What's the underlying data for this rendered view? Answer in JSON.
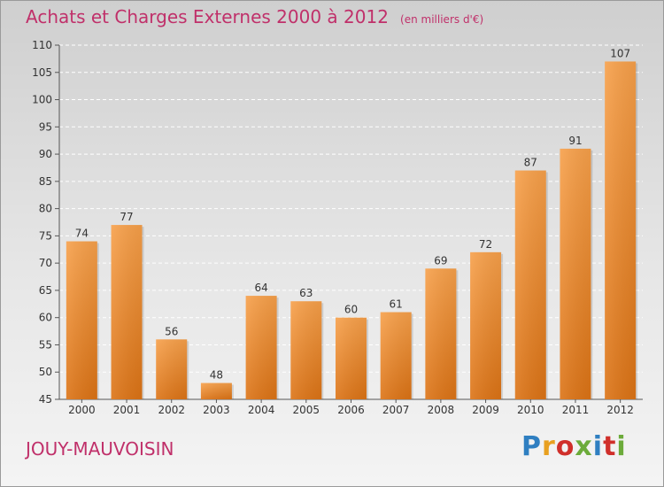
{
  "header": {
    "title": "Achats et Charges Externes 2000 à 2012",
    "subtitle": "(en milliers d'€)"
  },
  "footer": {
    "commune": "JOUY-MAUVOISIN",
    "brand": "Proxiti",
    "brand_colors": [
      "#2f7fc1",
      "#e8a020",
      "#d0302b",
      "#6cab3a",
      "#2f7fc1",
      "#d0302b",
      "#6cab3a"
    ]
  },
  "chart_data": {
    "type": "bar",
    "title": "Achats et Charges Externes 2000 à 2012",
    "subtitle": "(en milliers d'€)",
    "categories": [
      "2000",
      "2001",
      "2002",
      "2003",
      "2004",
      "2005",
      "2006",
      "2007",
      "2008",
      "2009",
      "2010",
      "2011",
      "2012"
    ],
    "values": [
      74,
      77,
      56,
      48,
      64,
      63,
      60,
      61,
      69,
      72,
      87,
      91,
      107
    ],
    "ylim": [
      45,
      110
    ],
    "yticks": [
      45,
      50,
      55,
      60,
      65,
      70,
      75,
      80,
      85,
      90,
      95,
      100,
      105,
      110
    ],
    "grid": true,
    "bar_color": "#f08a2c"
  }
}
